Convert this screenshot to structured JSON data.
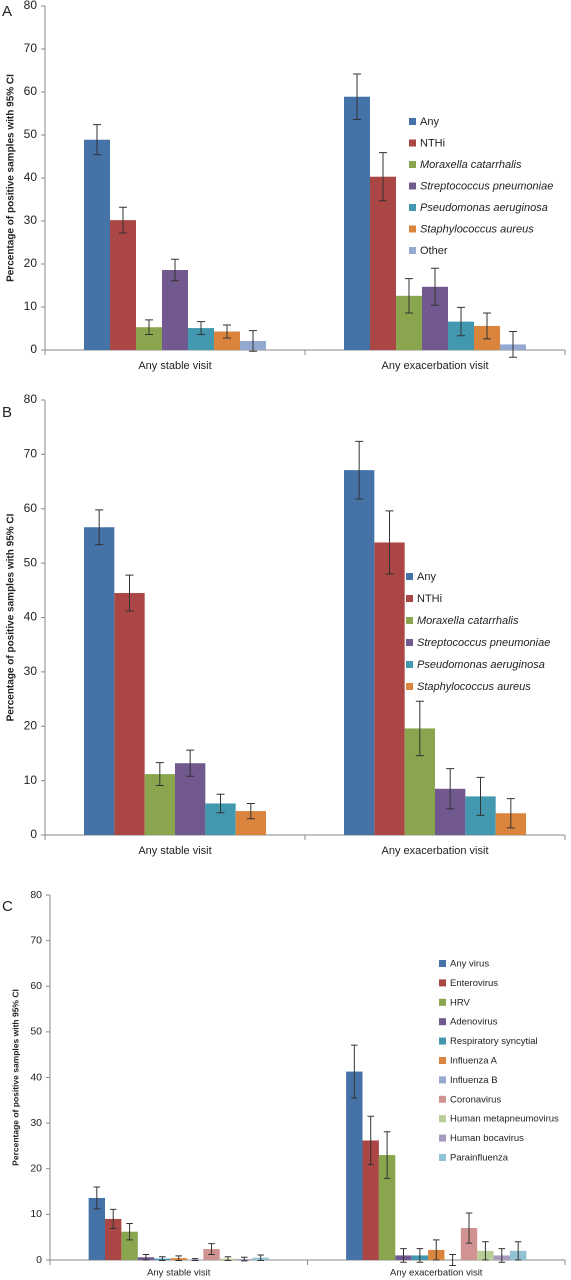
{
  "chart_data": [
    {
      "type": "bar",
      "panel": "A",
      "y_label": "Percentage of positive samples with 95% CI",
      "categories": [
        "Any stable visit",
        "Any exacerbation visit"
      ],
      "ylim": [
        0,
        80
      ],
      "yticks": [
        0,
        10,
        20,
        30,
        40,
        50,
        60,
        70,
        80
      ],
      "series": [
        {
          "name": "Any",
          "color": "#4572a7",
          "italic": false,
          "values": [
            48.9,
            58.9
          ],
          "errors": [
            3.5,
            5.3
          ]
        },
        {
          "name": "NTHi",
          "color": "#aa4643",
          "italic": false,
          "values": [
            30.2,
            40.3
          ],
          "errors": [
            3.0,
            5.6
          ]
        },
        {
          "name": "Moraxella catarrhalis",
          "color": "#89a54e",
          "italic": true,
          "values": [
            5.3,
            12.6
          ],
          "errors": [
            1.7,
            4.0
          ]
        },
        {
          "name": "Streptococcus pneumoniae",
          "color": "#71588f",
          "italic": true,
          "values": [
            18.6,
            14.7
          ],
          "errors": [
            2.5,
            4.3
          ]
        },
        {
          "name": "Pseudomonas aeruginosa",
          "color": "#4198af",
          "italic": true,
          "values": [
            5.1,
            6.6
          ],
          "errors": [
            1.5,
            3.3
          ]
        },
        {
          "name": "Staphylococcus aureus",
          "color": "#db843d",
          "italic": true,
          "values": [
            4.3,
            5.6
          ],
          "errors": [
            1.5,
            3.0
          ]
        },
        {
          "name": "Other",
          "color": "#93a9cf",
          "italic": false,
          "values": [
            2.1,
            1.3
          ],
          "errors": [
            2.4,
            3.0
          ]
        }
      ]
    },
    {
      "type": "bar",
      "panel": "B",
      "y_label": "Percentage of positive samples with 95% CI",
      "categories": [
        "Any stable visit",
        "Any exacerbation visit"
      ],
      "ylim": [
        0,
        80
      ],
      "yticks": [
        0,
        10,
        20,
        30,
        40,
        50,
        60,
        70,
        80
      ],
      "series": [
        {
          "name": "Any",
          "color": "#4572a7",
          "italic": false,
          "values": [
            56.6,
            67.1
          ],
          "errors": [
            3.2,
            5.3
          ]
        },
        {
          "name": "NTHi",
          "color": "#aa4643",
          "italic": false,
          "values": [
            44.5,
            53.8
          ],
          "errors": [
            3.3,
            5.8
          ]
        },
        {
          "name": "Moraxella catarrhalis",
          "color": "#89a54e",
          "italic": true,
          "values": [
            11.2,
            19.6
          ],
          "errors": [
            2.1,
            5.0
          ]
        },
        {
          "name": "Streptococcus pneumoniae",
          "color": "#71588f",
          "italic": true,
          "values": [
            13.2,
            8.5
          ],
          "errors": [
            2.4,
            3.7
          ]
        },
        {
          "name": "Pseudomonas aeruginosa",
          "color": "#4198af",
          "italic": true,
          "values": [
            5.8,
            7.1
          ],
          "errors": [
            1.7,
            3.5
          ]
        },
        {
          "name": "Staphylococcus aureus",
          "color": "#db843d",
          "italic": true,
          "values": [
            4.4,
            4.0
          ],
          "errors": [
            1.4,
            2.7
          ]
        }
      ]
    },
    {
      "type": "bar",
      "panel": "C",
      "y_label": "Percentage of positive samples with 95% CI",
      "categories": [
        "Any stable visit",
        "Any exacerbation visit"
      ],
      "ylim": [
        0,
        80
      ],
      "yticks": [
        0,
        10,
        20,
        30,
        40,
        50,
        60,
        70,
        80
      ],
      "series": [
        {
          "name": "Any virus",
          "color": "#4572a7",
          "italic": false,
          "values": [
            13.6,
            41.3
          ],
          "errors": [
            2.4,
            5.8
          ]
        },
        {
          "name": "Enterovirus",
          "color": "#aa4643",
          "italic": false,
          "values": [
            9.0,
            26.2
          ],
          "errors": [
            2.1,
            5.3
          ]
        },
        {
          "name": "HRV",
          "color": "#89a54e",
          "italic": false,
          "values": [
            6.2,
            23.0
          ],
          "errors": [
            1.8,
            5.1
          ]
        },
        {
          "name": "Adenovirus",
          "color": "#71588f",
          "italic": false,
          "values": [
            0.6,
            1.0
          ],
          "errors": [
            0.6,
            1.5
          ]
        },
        {
          "name": "Respiratory syncytial",
          "color": "#4198af",
          "italic": false,
          "values": [
            0.3,
            1.0
          ],
          "errors": [
            0.4,
            1.5
          ]
        },
        {
          "name": "Influenza A",
          "color": "#db843d",
          "italic": false,
          "values": [
            0.4,
            2.2
          ],
          "errors": [
            0.5,
            2.2
          ]
        },
        {
          "name": "Influenza B",
          "color": "#93a9cf",
          "italic": false,
          "values": [
            0.1,
            0.0
          ],
          "errors": [
            0.2,
            1.2
          ]
        },
        {
          "name": "Coronavirus",
          "color": "#d09392",
          "italic": false,
          "values": [
            2.4,
            7.0
          ],
          "errors": [
            1.2,
            3.3
          ]
        },
        {
          "name": "Human metapneumovirus",
          "color": "#b9cd96",
          "italic": false,
          "values": [
            0.3,
            2.0
          ],
          "errors": [
            0.4,
            2.0
          ]
        },
        {
          "name": "Human bocavirus",
          "color": "#a99bbd",
          "italic": false,
          "values": [
            0.2,
            1.0
          ],
          "errors": [
            0.4,
            1.5
          ]
        },
        {
          "name": "Parainfluenza",
          "color": "#92c3d4",
          "italic": false,
          "values": [
            0.5,
            2.0
          ],
          "errors": [
            0.6,
            2.0
          ]
        }
      ]
    }
  ]
}
